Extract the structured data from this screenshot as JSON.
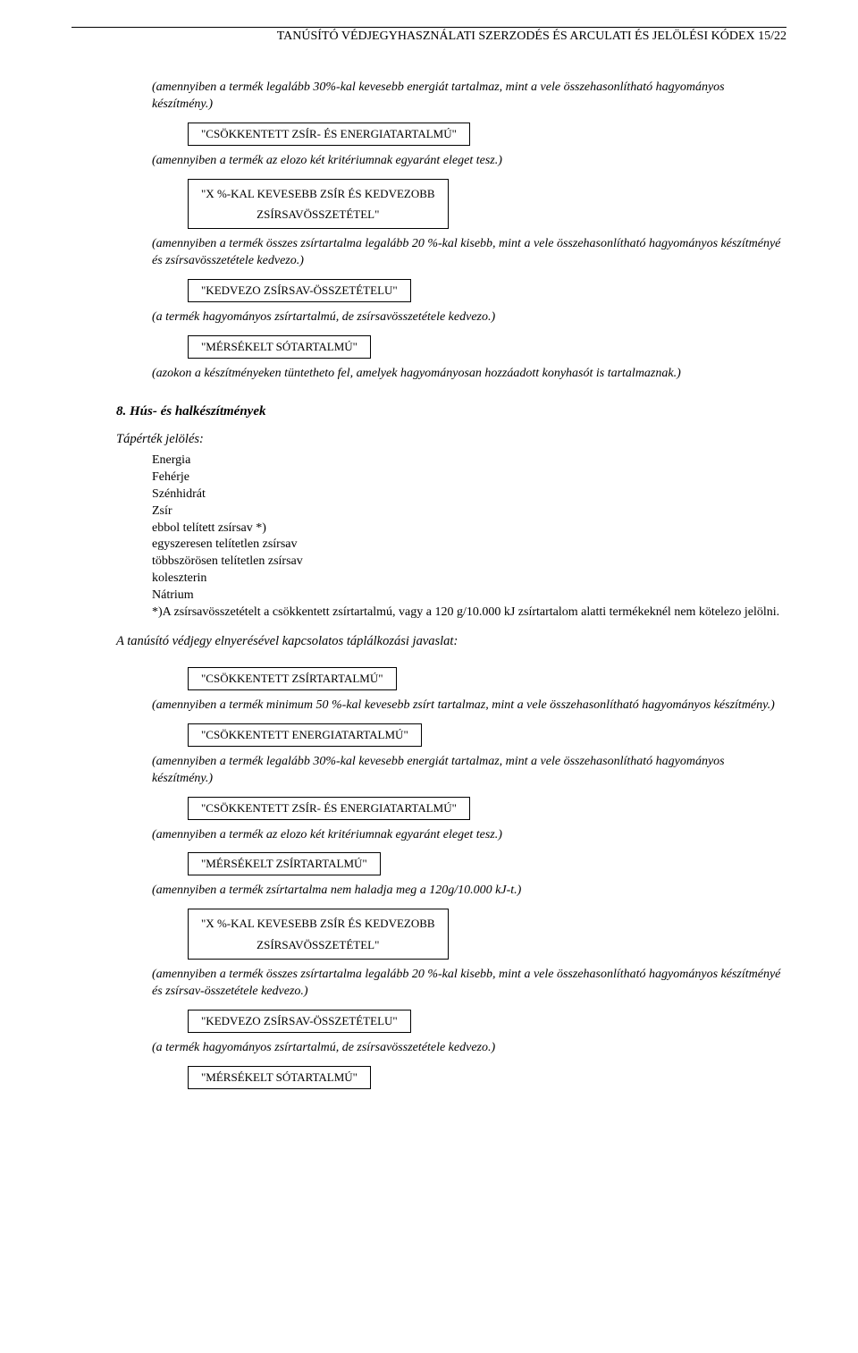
{
  "header": "TANÚSÍTÓ VÉDJEGYHASZNÁLATI SZERZODÉS ÉS ARCULATI ÉS JELÖLÉSI KÓDEX 15/22",
  "s1": {
    "d1": "(amennyiben a termék legalább 30%-kal kevesebb energiát tartalmaz, mint a vele összehasonlítható hagyományos készítmény.)",
    "b1": "\"CSÖKKENTETT ZSÍR- ÉS ENERGIATARTALMÚ\"",
    "d2": "(amennyiben a termék az elozo két kritériumnak egyaránt eleget tesz.)",
    "b2a": "\"X %-KAL KEVESEBB ZSÍR ÉS KEDVEZOBB",
    "b2b": "ZSÍRSAVÖSSZETÉTEL\"",
    "d3": "(amennyiben a termék összes zsírtartalma legalább 20 %-kal kisebb, mint a vele összehasonlítható hagyományos készítményé és zsírsavösszetétele kedvezo.)",
    "b3": "\"KEDVEZO ZSÍRSAV-ÖSSZETÉTELU\"",
    "d4": "(a termék hagyományos zsírtartalmú, de zsírsavösszetétele kedvezo.)",
    "b4": "\"MÉRSÉKELT SÓTARTALMÚ\"",
    "d5": "(azokon a készítményeken tüntetheto fel, amelyek hagyományosan hozzáadott konyhasót is tartalmaznak.)"
  },
  "sectionTitle": "8. Hús- és halkészítmények",
  "taperLabel": "Tápérték jelölés:",
  "list": [
    "Energia",
    "Fehérje",
    "Szénhidrát",
    "Zsír",
    "ebbol telített zsírsav *)",
    "egyszeresen telítetlen zsírsav",
    "többszörösen telítetlen zsírsav",
    "koleszterin",
    "Nátrium",
    "*)A zsírsavösszetételt a csökkentett zsírtartalmú, vagy a 120 g/10.000 kJ zsírtartalom alatti termékeknél nem kötelezo jelölni."
  ],
  "javaslat": "A tanúsító védjegy elnyerésével kapcsolatos táplálkozási javaslat:",
  "s2": {
    "b1": "\"CSÖKKENTETT ZSÍRTARTALMÚ\"",
    "d1": "(amennyiben a termék minimum 50 %-kal kevesebb zsírt tartalmaz, mint a vele összehasonlítható hagyományos készítmény.)",
    "b2": "\"CSÖKKENTETT ENERGIATARTALMÚ\"",
    "d2": "(amennyiben a termék legalább 30%-kal kevesebb energiát tartalmaz, mint a vele összehasonlítható hagyományos készítmény.)",
    "b3": "\"CSÖKKENTETT ZSÍR- ÉS ENERGIATARTALMÚ\"",
    "d3": "(amennyiben a termék az elozo két kritériumnak egyaránt eleget tesz.)",
    "b4": "\"MÉRSÉKELT ZSÍRTARTALMÚ\"",
    "d4": "(amennyiben a termék zsírtartalma nem haladja meg a 120g/10.000 kJ-t.)",
    "b5a": "\"X %-KAL KEVESEBB ZSÍR ÉS KEDVEZOBB",
    "b5b": "ZSÍRSAVÖSSZETÉTEL\"",
    "d5": "(amennyiben a termék összes zsírtartalma legalább 20 %-kal kisebb, mint a vele összehasonlítható hagyományos készítményé és zsírsav-összetétele kedvezo.)",
    "b6": "\"KEDVEZO ZSÍRSAV-ÖSSZETÉTELU\"",
    "d6": "(a termék hagyományos zsírtartalmú, de zsírsavösszetétele kedvezo.)",
    "b7": "\"MÉRSÉKELT SÓTARTALMÚ\""
  }
}
